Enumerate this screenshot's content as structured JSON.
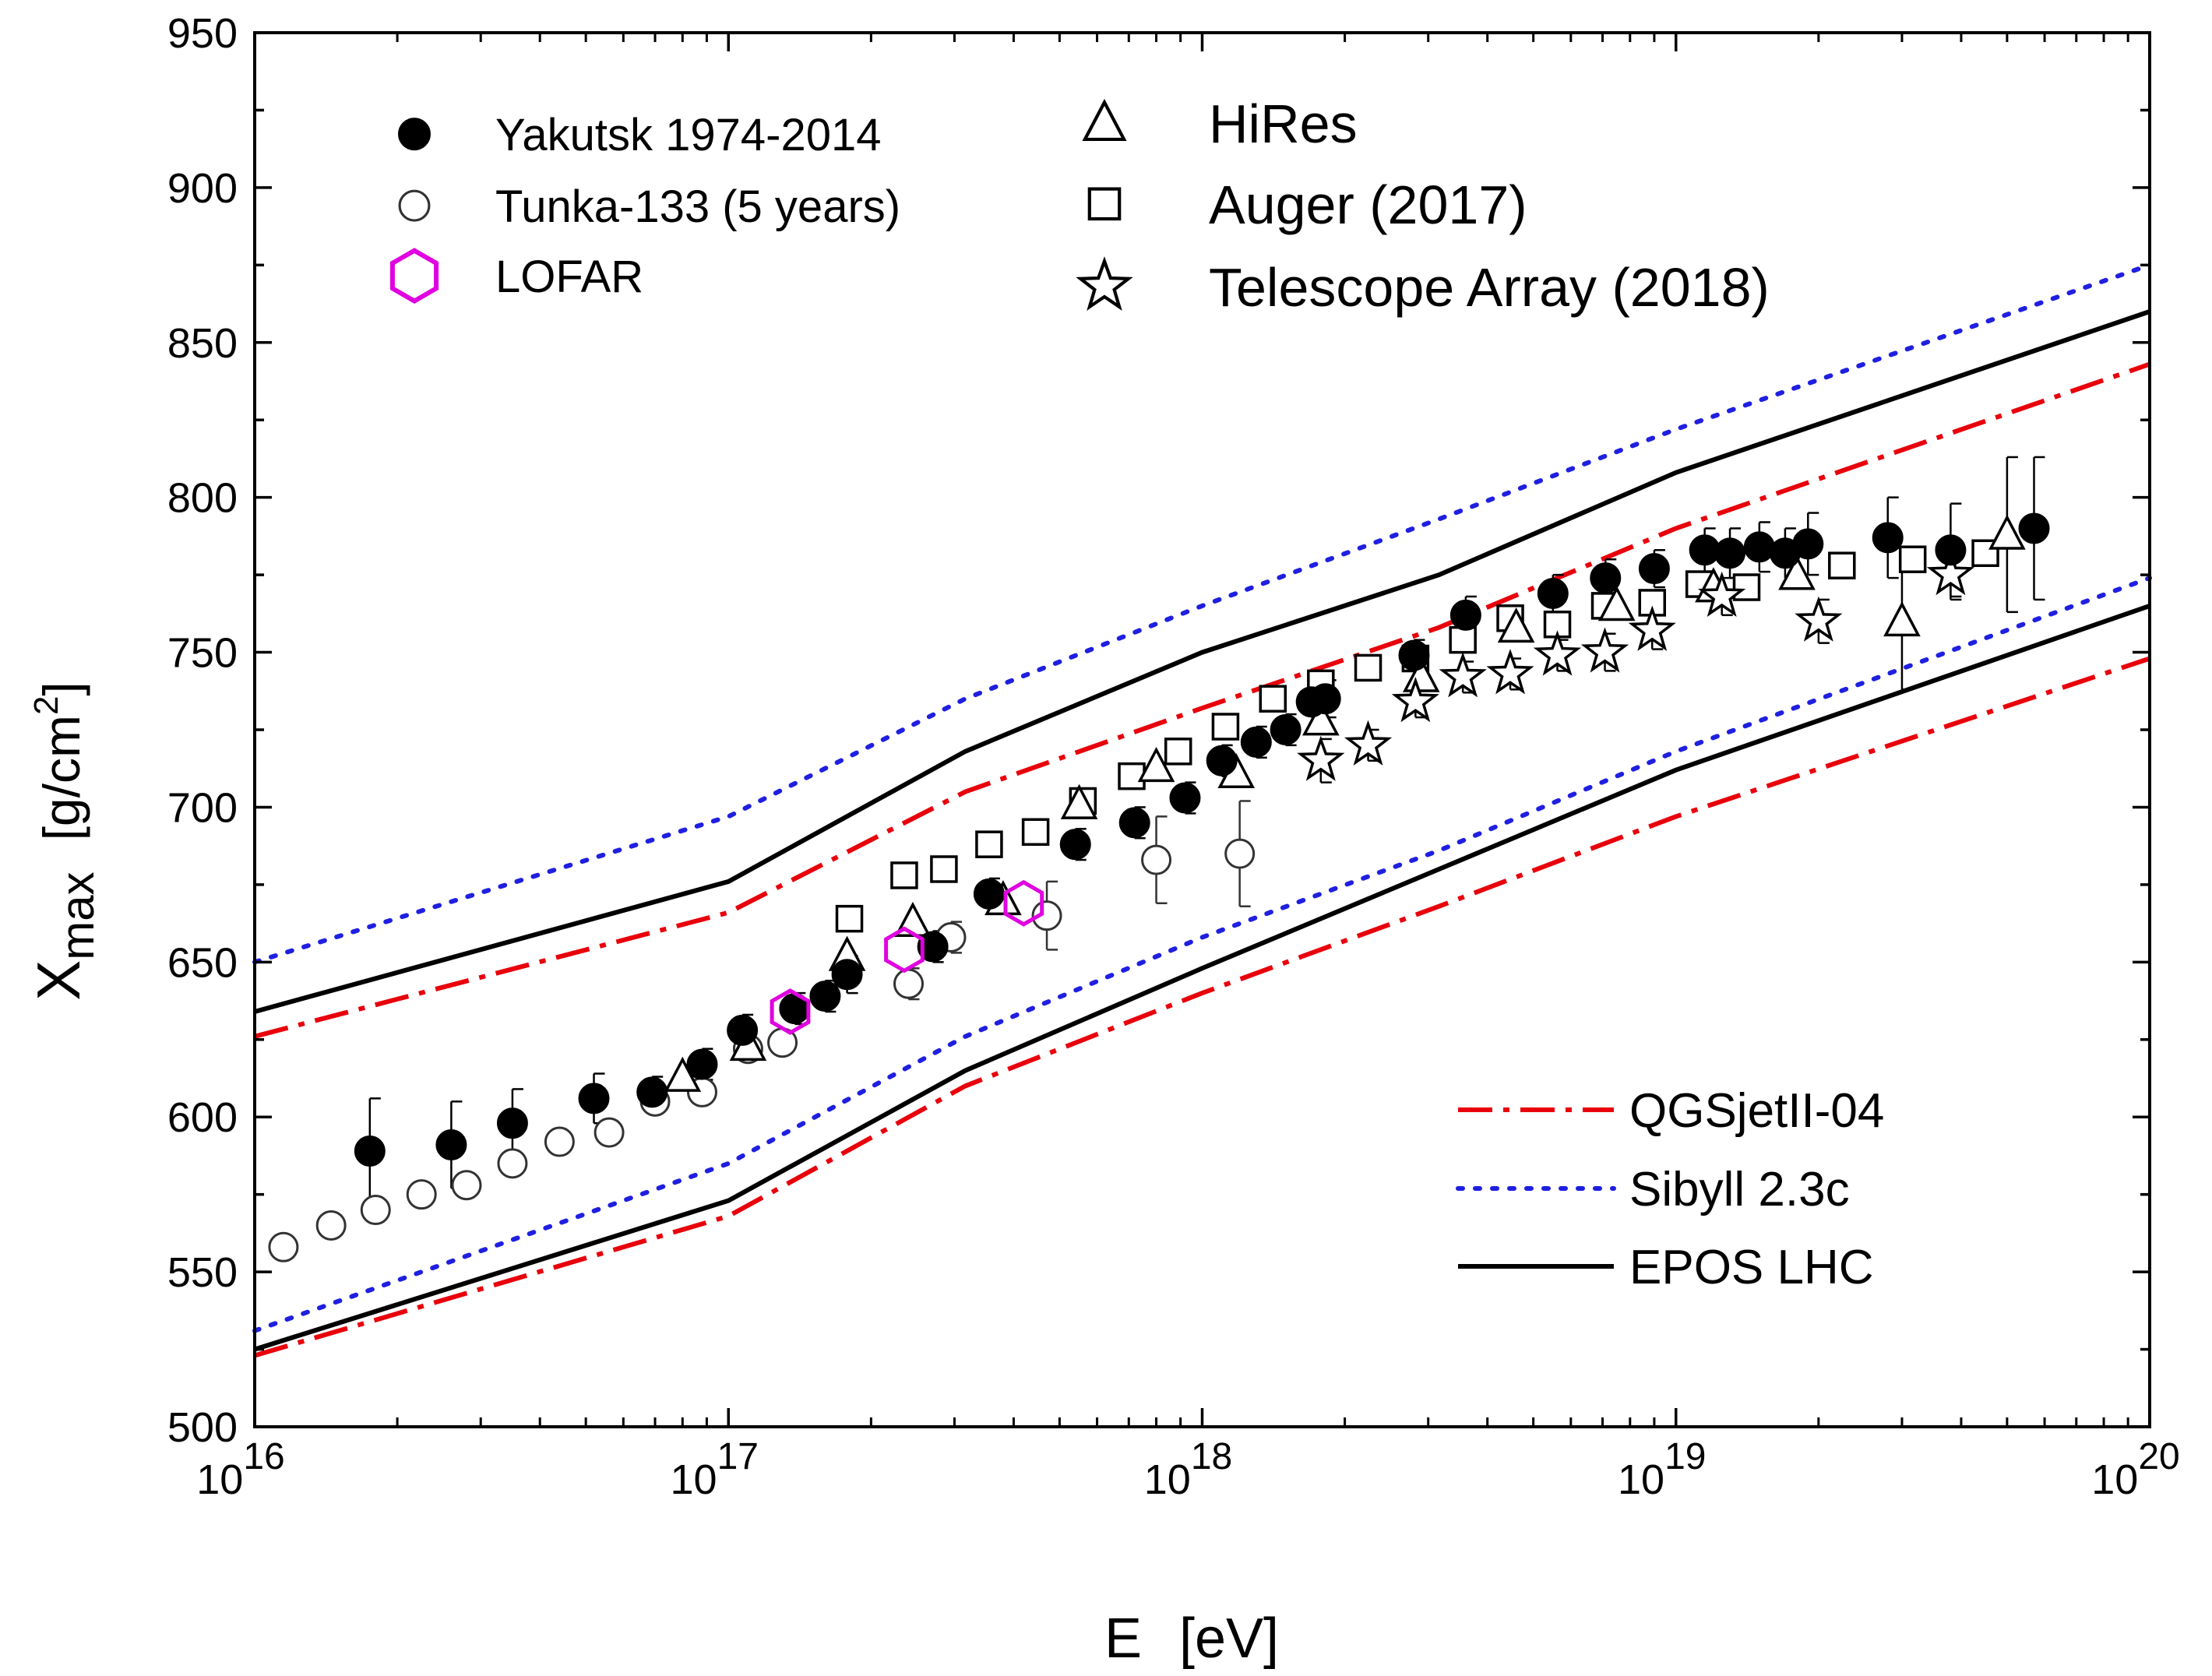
{
  "chart_data": {
    "type": "scatter",
    "xscale": "log",
    "xlim_exp": [
      16,
      20
    ],
    "ylim": [
      500,
      950
    ],
    "yticks": [
      500,
      550,
      600,
      650,
      700,
      750,
      800,
      850,
      900,
      950
    ],
    "xticks": [
      {
        "base": "10",
        "exp": "16"
      },
      {
        "base": "10",
        "exp": "17"
      },
      {
        "base": "10",
        "exp": "18"
      },
      {
        "base": "10",
        "exp": "19"
      },
      {
        "base": "10",
        "exp": "20"
      }
    ],
    "xlabel": {
      "main": "E",
      "unit": "[eV]"
    },
    "ylabel": {
      "main": "X",
      "sub": "max",
      "unit_prefix": "[g/cm",
      "unit_sup": "2",
      "unit_suffix": "]"
    },
    "legend_points": [
      {
        "label": "Yakutsk 1974-2014",
        "marker": "filled-circle"
      },
      {
        "label": "Tunka-133 (5 years)",
        "marker": "open-circle"
      },
      {
        "label": "LOFAR",
        "marker": "hexagon"
      },
      {
        "label": "HiRes",
        "marker": "triangle"
      },
      {
        "label": "Auger (2017)",
        "marker": "square"
      },
      {
        "label": "Telescope Array (2018)",
        "marker": "star"
      }
    ],
    "legend_lines": [
      {
        "label": "QGSjetII-04",
        "style": "dashdot"
      },
      {
        "label": "Sibyll 2.3c",
        "style": "dotted"
      },
      {
        "label": "EPOS LHC",
        "style": "solid"
      }
    ],
    "colors": {
      "qgsjet": "#e8000b",
      "sibyll": "#1f1fe0",
      "epos": "#000000",
      "lofar": "#e000e0",
      "axis": "#000000"
    },
    "series": {
      "yakutsk": [
        {
          "E": 1.75e+16,
          "X": 589,
          "err": [
            17,
            17
          ]
        },
        {
          "E": 2.6e+16,
          "X": 591,
          "err": [
            14,
            14
          ]
        },
        {
          "E": 3.5e+16,
          "X": 598,
          "err": [
            11,
            11
          ]
        },
        {
          "E": 5.2e+16,
          "X": 606,
          "err": [
            8,
            8
          ]
        },
        {
          "E": 6.9e+16,
          "X": 608,
          "err": [
            5,
            5
          ]
        },
        {
          "E": 8.8e+16,
          "X": 617,
          "err": [
            5,
            5
          ]
        },
        {
          "E": 1.07e+17,
          "X": 628,
          "err": [
            5,
            5
          ]
        },
        {
          "E": 1.38e+17,
          "X": 635,
          "err": [
            5,
            5
          ]
        },
        {
          "E": 1.6e+17,
          "X": 639,
          "err": [
            5,
            5
          ]
        },
        {
          "E": 1.78e+17,
          "X": 646,
          "err": [
            6,
            6
          ]
        },
        {
          "E": 2.7e+17,
          "X": 655,
          "err": [
            5,
            5
          ]
        },
        {
          "E": 3.55e+17,
          "X": 672,
          "err": [
            5,
            5
          ]
        },
        {
          "E": 5.4e+17,
          "X": 688,
          "err": [
            5,
            5
          ]
        },
        {
          "E": 7.2e+17,
          "X": 695,
          "err": [
            5,
            5
          ]
        },
        {
          "E": 9.2e+17,
          "X": 703,
          "err": [
            5,
            5
          ]
        },
        {
          "E": 1.1e+18,
          "X": 715,
          "err": [
            5,
            5
          ]
        },
        {
          "E": 1.3e+18,
          "X": 721,
          "err": [
            5,
            5
          ]
        },
        {
          "E": 1.5e+18,
          "X": 725,
          "err": [
            5,
            5
          ]
        },
        {
          "E": 1.7e+18,
          "X": 734,
          "err": [
            5,
            5
          ]
        },
        {
          "E": 1.82e+18,
          "X": 735,
          "err": [
            6,
            6
          ]
        },
        {
          "E": 2.8e+18,
          "X": 749,
          "err": [
            5,
            5
          ]
        },
        {
          "E": 3.6e+18,
          "X": 762,
          "err": [
            6,
            6
          ]
        },
        {
          "E": 5.5e+18,
          "X": 769,
          "err": [
            6,
            6
          ]
        },
        {
          "E": 7.1e+18,
          "X": 774,
          "err": [
            6,
            6
          ]
        },
        {
          "E": 9e+18,
          "X": 777,
          "err": [
            6,
            6
          ]
        },
        {
          "E": 1.15e+19,
          "X": 783,
          "err": [
            7,
            7
          ]
        },
        {
          "E": 1.3e+19,
          "X": 782,
          "err": [
            8,
            8
          ]
        },
        {
          "E": 1.5e+19,
          "X": 784,
          "err": [
            8,
            8
          ]
        },
        {
          "E": 1.7e+19,
          "X": 782,
          "err": [
            8,
            8
          ]
        },
        {
          "E": 1.9e+19,
          "X": 785,
          "err": [
            10,
            10
          ]
        },
        {
          "E": 2.8e+19,
          "X": 787,
          "err": [
            13,
            13
          ]
        },
        {
          "E": 3.8e+19,
          "X": 783,
          "err": [
            15,
            15
          ]
        },
        {
          "E": 5.7e+19,
          "X": 790,
          "err": [
            23,
            23
          ]
        }
      ],
      "tunka": [
        {
          "E": 1.15e+16,
          "X": 558
        },
        {
          "E": 1.45e+16,
          "X": 565
        },
        {
          "E": 1.8e+16,
          "X": 570
        },
        {
          "E": 2.25e+16,
          "X": 575
        },
        {
          "E": 2.8e+16,
          "X": 578
        },
        {
          "E": 3.5e+16,
          "X": 585
        },
        {
          "E": 4.4e+16,
          "X": 592
        },
        {
          "E": 5.6e+16,
          "X": 595
        },
        {
          "E": 7e+16,
          "X": 605
        },
        {
          "E": 8.8e+16,
          "X": 608
        },
        {
          "E": 1.1e+17,
          "X": 622
        },
        {
          "E": 1.3e+17,
          "X": 624
        },
        {
          "E": 2.4e+17,
          "X": 643,
          "err": [
            5,
            5
          ]
        },
        {
          "E": 2.95e+17,
          "X": 658,
          "err": [
            5,
            5
          ]
        },
        {
          "E": 4.7e+17,
          "X": 665,
          "err": [
            11,
            11
          ]
        },
        {
          "E": 8e+17,
          "X": 683,
          "err": [
            14,
            14
          ]
        },
        {
          "E": 1.2e+18,
          "X": 685,
          "err": [
            17,
            17
          ]
        }
      ],
      "lofar": [
        {
          "E": 1.35e+17,
          "X": 634
        },
        {
          "E": 2.35e+17,
          "X": 654
        },
        {
          "E": 4.2e+17,
          "X": 669
        }
      ],
      "hires": [
        {
          "E": 8e+16,
          "X": 613
        },
        {
          "E": 1.1e+17,
          "X": 623
        },
        {
          "E": 1.78e+17,
          "X": 652
        },
        {
          "E": 2.45e+17,
          "X": 663
        },
        {
          "E": 3.8e+17,
          "X": 670
        },
        {
          "E": 5.5e+17,
          "X": 701
        },
        {
          "E": 8e+17,
          "X": 713
        },
        {
          "E": 1.18e+18,
          "X": 711
        },
        {
          "E": 1.78e+18,
          "X": 728
        },
        {
          "E": 2.9e+18,
          "X": 742
        },
        {
          "E": 4.6e+18,
          "X": 758
        },
        {
          "E": 7.5e+18,
          "X": 765
        },
        {
          "E": 1.2e+19,
          "X": 771
        },
        {
          "E": 1.8e+19,
          "X": 775
        },
        {
          "E": 3e+19,
          "X": 760,
          "err": [
            22,
            22
          ]
        },
        {
          "E": 5e+19,
          "X": 788,
          "err": [
            25,
            25
          ]
        }
      ],
      "auger": [
        {
          "E": 1.8e+17,
          "X": 664
        },
        {
          "E": 2.35e+17,
          "X": 678
        },
        {
          "E": 2.85e+17,
          "X": 680
        },
        {
          "E": 3.55e+17,
          "X": 688
        },
        {
          "E": 4.45e+17,
          "X": 692
        },
        {
          "E": 5.6e+17,
          "X": 702
        },
        {
          "E": 7.1e+17,
          "X": 710
        },
        {
          "E": 8.9e+17,
          "X": 718
        },
        {
          "E": 1.12e+18,
          "X": 726
        },
        {
          "E": 1.41e+18,
          "X": 735
        },
        {
          "E": 1.78e+18,
          "X": 740
        },
        {
          "E": 2.24e+18,
          "X": 745
        },
        {
          "E": 2.82e+18,
          "X": 748
        },
        {
          "E": 3.55e+18,
          "X": 754
        },
        {
          "E": 4.47e+18,
          "X": 761
        },
        {
          "E": 5.62e+18,
          "X": 759
        },
        {
          "E": 7.08e+18,
          "X": 765
        },
        {
          "E": 8.91e+18,
          "X": 766
        },
        {
          "E": 1.12e+19,
          "X": 772
        },
        {
          "E": 1.41e+19,
          "X": 771
        },
        {
          "E": 2.24e+19,
          "X": 778
        },
        {
          "E": 3.16e+19,
          "X": 780
        },
        {
          "E": 4.5e+19,
          "X": 782
        }
      ],
      "ta": [
        {
          "E": 1.78e+18,
          "X": 715,
          "err": [
            7,
            7
          ]
        },
        {
          "E": 2.24e+18,
          "X": 720,
          "err": [
            5,
            5
          ]
        },
        {
          "E": 2.82e+18,
          "X": 734,
          "err": [
            5,
            5
          ]
        },
        {
          "E": 3.55e+18,
          "X": 742,
          "err": [
            5,
            5
          ]
        },
        {
          "E": 4.47e+18,
          "X": 743,
          "err": [
            5,
            5
          ]
        },
        {
          "E": 5.62e+18,
          "X": 749,
          "err": [
            5,
            5
          ]
        },
        {
          "E": 7.08e+18,
          "X": 750,
          "err": [
            6,
            6
          ]
        },
        {
          "E": 8.91e+18,
          "X": 757,
          "err": [
            6,
            6
          ]
        },
        {
          "E": 1.25e+19,
          "X": 768,
          "err": [
            6,
            6
          ]
        },
        {
          "E": 2e+19,
          "X": 760,
          "err": [
            7,
            7
          ]
        },
        {
          "E": 3.8e+19,
          "X": 775,
          "err": [
            8,
            8
          ]
        }
      ]
    },
    "model_lines": {
      "epos_upper": [
        [
          16,
          634
        ],
        [
          17,
          676
        ],
        [
          17.5,
          718
        ],
        [
          18,
          750
        ],
        [
          18.5,
          775
        ],
        [
          19,
          808
        ],
        [
          20,
          860
        ]
      ],
      "epos_lower": [
        [
          16,
          525
        ],
        [
          17,
          573
        ],
        [
          17.5,
          615
        ],
        [
          18,
          648
        ],
        [
          18.5,
          680
        ],
        [
          19,
          712
        ],
        [
          20,
          765
        ]
      ],
      "qgsjet_upper": [
        [
          16,
          626
        ],
        [
          17,
          666
        ],
        [
          17.5,
          705
        ],
        [
          18,
          732
        ],
        [
          18.5,
          758
        ],
        [
          19,
          790
        ],
        [
          20,
          843
        ]
      ],
      "qgsjet_lower": [
        [
          16,
          523
        ],
        [
          17,
          568
        ],
        [
          17.5,
          610
        ],
        [
          18,
          640
        ],
        [
          18.5,
          668
        ],
        [
          19,
          697
        ],
        [
          20,
          748
        ]
      ],
      "sibyll_upper": [
        [
          16,
          650
        ],
        [
          17,
          697
        ],
        [
          17.5,
          735
        ],
        [
          18,
          765
        ],
        [
          18.5,
          793
        ],
        [
          19,
          822
        ],
        [
          20,
          875
        ]
      ],
      "sibyll_lower": [
        [
          16,
          531
        ],
        [
          17,
          585
        ],
        [
          17.5,
          626
        ],
        [
          18,
          658
        ],
        [
          18.5,
          686
        ],
        [
          19,
          718
        ],
        [
          20,
          774
        ]
      ]
    }
  }
}
